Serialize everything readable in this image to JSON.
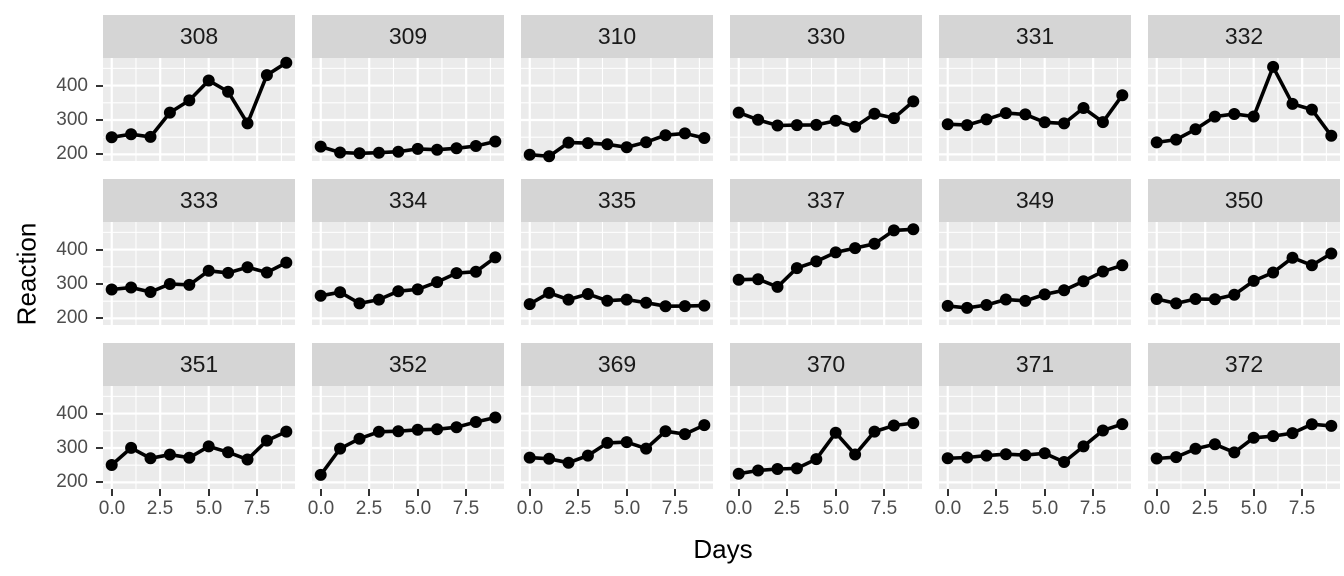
{
  "chart_data": {
    "type": "line",
    "title": "",
    "xlabel": "Days",
    "ylabel": "Reaction",
    "layout": {
      "rows": 3,
      "cols": 6,
      "faceted": true,
      "grid": "on",
      "legend_position": "none"
    },
    "x": [
      0,
      1,
      2,
      3,
      4,
      5,
      6,
      7,
      8,
      9
    ],
    "xlim": [
      -0.45,
      9.45
    ],
    "ylim": [
      180.7,
      480.2
    ],
    "x_ticks": {
      "values": [
        0,
        2.5,
        5,
        7.5
      ],
      "labels": [
        "0.0",
        "2.5",
        "5.0",
        "7.5"
      ]
    },
    "y_ticks": {
      "values": [
        400,
        300,
        200
      ],
      "labels": [
        "400",
        "300",
        "200"
      ]
    },
    "x_minor": [
      1.25,
      3.75,
      6.25,
      8.75
    ],
    "y_minor": [
      450,
      350,
      250
    ],
    "colors": {
      "point": "#000000",
      "line": "#000000",
      "panel_bg": "#EBEBEB",
      "strip_bg": "#D5D5D5",
      "gridline": "#FFFFFF",
      "tick_text": "#4D4D4D",
      "strip_text": "#1A1A1A",
      "axis_title": "#000000",
      "tick_mark": "#333333"
    },
    "facets": [
      {
        "label": "308",
        "values": [
          249.6,
          258.7,
          250.8,
          321.4,
          356.9,
          414.7,
          382.2,
          290.1,
          430.6,
          466.4
        ]
      },
      {
        "label": "309",
        "values": [
          222.7,
          205.3,
          203.0,
          204.7,
          207.7,
          216.0,
          213.6,
          217.7,
          224.3,
          237.3
        ]
      },
      {
        "label": "310",
        "values": [
          199.1,
          194.3,
          234.3,
          232.8,
          229.3,
          220.5,
          235.4,
          255.8,
          261.0,
          247.5
        ]
      },
      {
        "label": "330",
        "values": [
          321.5,
          300.4,
          283.9,
          285.1,
          285.8,
          297.6,
          280.2,
          318.3,
          305.3,
          354.0
        ]
      },
      {
        "label": "331",
        "values": [
          287.6,
          285.0,
          301.8,
          320.1,
          316.3,
          293.3,
          290.1,
          334.8,
          293.7,
          371.6
        ]
      },
      {
        "label": "332",
        "values": [
          234.9,
          242.8,
          273.0,
          309.8,
          317.5,
          310.0,
          454.2,
          346.8,
          330.3,
          253.9
        ]
      },
      {
        "label": "333",
        "values": [
          283.8,
          289.6,
          276.8,
          299.8,
          297.2,
          338.2,
          332.3,
          348.8,
          333.4,
          362.0
        ]
      },
      {
        "label": "334",
        "values": [
          265.5,
          276.2,
          243.4,
          254.7,
          279.0,
          284.2,
          305.5,
          331.5,
          335.7,
          377.3
        ]
      },
      {
        "label": "335",
        "values": [
          241.6,
          273.9,
          254.5,
          270.8,
          251.5,
          254.6,
          245.5,
          235.3,
          235.8,
          237.2
        ]
      },
      {
        "label": "337",
        "values": [
          312.4,
          313.8,
          291.6,
          346.1,
          365.7,
          391.8,
          404.3,
          416.7,
          455.9,
          458.9
        ]
      },
      {
        "label": "349",
        "values": [
          236.1,
          230.3,
          238.9,
          254.9,
          250.7,
          269.8,
          281.6,
          308.1,
          336.3,
          354.4
        ]
      },
      {
        "label": "350",
        "values": [
          256.3,
          243.5,
          256.2,
          255.5,
          268.9,
          308.8,
          333.3,
          376.4,
          354.4,
          388.5
        ]
      },
      {
        "label": "351",
        "values": [
          250.5,
          300.1,
          269.9,
          280.6,
          271.8,
          304.6,
          287.7,
          266.6,
          321.5,
          347.6
        ]
      },
      {
        "label": "352",
        "values": [
          221.7,
          298.2,
          326.9,
          346.9,
          348.7,
          352.8,
          354.4,
          360.4,
          375.6,
          388.5
        ]
      },
      {
        "label": "369",
        "values": [
          271.9,
          268.4,
          257.2,
          277.7,
          314.8,
          317.2,
          298.2,
          348.8,
          340.3,
          366.5
        ]
      },
      {
        "label": "370",
        "values": [
          225.3,
          234.5,
          238.9,
          240.5,
          267.5,
          344.2,
          281.1,
          347.6,
          365.2,
          372.2
        ]
      },
      {
        "label": "371",
        "values": [
          269.9,
          272.4,
          277.9,
          281.8,
          279.2,
          284.5,
          259.3,
          304.6,
          350.8,
          369.5
        ]
      },
      {
        "label": "372",
        "values": [
          269.4,
          273.5,
          297.6,
          310.6,
          287.2,
          329.6,
          334.5,
          343.2,
          369.1,
          364.1
        ]
      }
    ]
  }
}
